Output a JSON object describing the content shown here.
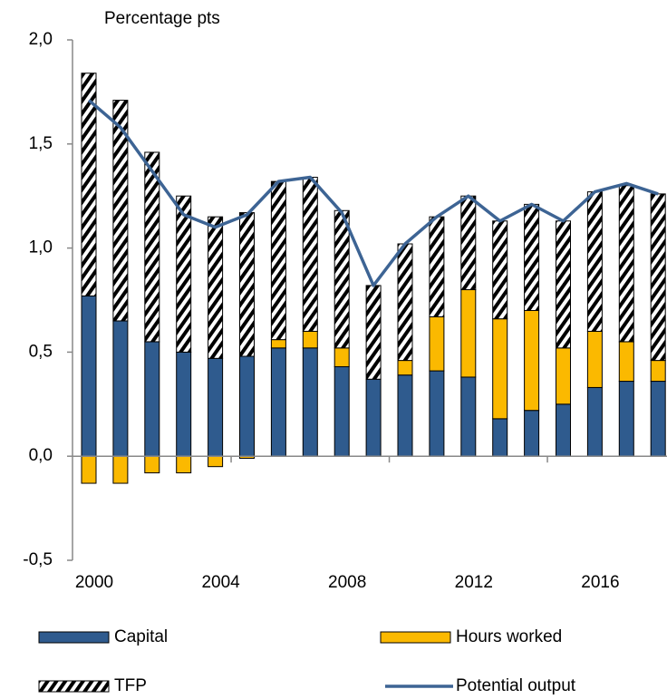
{
  "chart_data": {
    "type": "bar",
    "stacked": true,
    "y_axis_label": "Percentage pts",
    "categories": [
      "2000",
      null,
      null,
      null,
      "2004",
      null,
      null,
      null,
      "2008",
      null,
      null,
      null,
      "2012",
      null,
      null,
      null,
      "2016",
      null,
      null
    ],
    "series": [
      {
        "name": "Capital",
        "type": "bar",
        "color": "#2f5b8e",
        "values": [
          0.77,
          0.65,
          0.55,
          0.5,
          0.47,
          0.48,
          0.52,
          0.52,
          0.43,
          0.37,
          0.39,
          0.41,
          0.38,
          0.18,
          0.22,
          0.25,
          0.33,
          0.36,
          0.36
        ]
      },
      {
        "name": "Hours worked",
        "type": "bar",
        "color": "#fbb900",
        "values": [
          -0.13,
          -0.13,
          -0.08,
          -0.08,
          -0.05,
          -0.01,
          0.04,
          0.08,
          0.09,
          0.0,
          0.07,
          0.26,
          0.42,
          0.48,
          0.48,
          0.27,
          0.27,
          0.19,
          0.1
        ]
      },
      {
        "name": "TFP",
        "type": "bar",
        "pattern": "hatch",
        "color": "#000000",
        "values": [
          1.07,
          1.06,
          0.91,
          0.75,
          0.68,
          0.69,
          0.76,
          0.74,
          0.66,
          0.45,
          0.56,
          0.48,
          0.45,
          0.47,
          0.51,
          0.61,
          0.67,
          0.75,
          0.8
        ]
      },
      {
        "name": "Potential output",
        "type": "line",
        "color": "#3d6494",
        "values": [
          1.71,
          1.58,
          1.37,
          1.16,
          1.1,
          1.16,
          1.32,
          1.34,
          1.17,
          0.82,
          1.02,
          1.15,
          1.25,
          1.13,
          1.21,
          1.13,
          1.27,
          1.31,
          1.26
        ]
      }
    ],
    "ylim": [
      -0.5,
      2.0
    ],
    "yticks": [
      {
        "value": -0.5,
        "label": "-0,5"
      },
      {
        "value": 0,
        "label": "0,0"
      },
      {
        "value": 0.5,
        "label": "0,5"
      },
      {
        "value": 1.0,
        "label": "1,0"
      },
      {
        "value": 1.5,
        "label": "1,5"
      },
      {
        "value": 2.0,
        "label": "2,0"
      }
    ],
    "shade": {
      "from": "2014",
      "color": "#d9d9d9"
    },
    "grid": false,
    "legend": "bottom"
  }
}
